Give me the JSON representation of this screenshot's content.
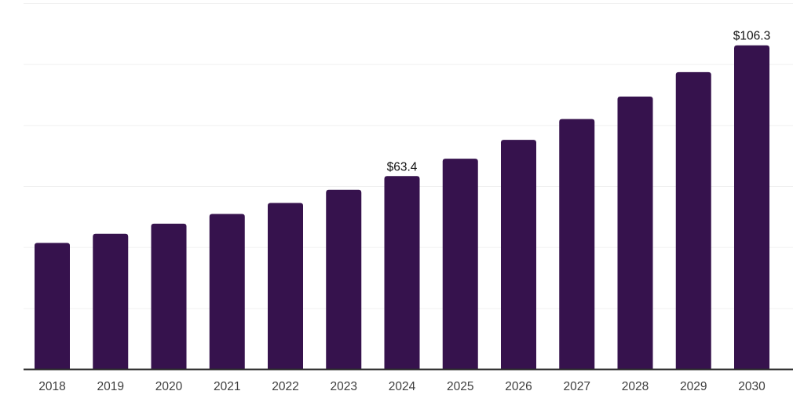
{
  "chart_data": {
    "type": "bar",
    "title": "",
    "xlabel": "",
    "ylabel": "",
    "categories": [
      "2018",
      "2019",
      "2020",
      "2021",
      "2022",
      "2023",
      "2024",
      "2025",
      "2026",
      "2027",
      "2028",
      "2029",
      "2030"
    ],
    "values": [
      41.5,
      44.5,
      47.8,
      51.0,
      54.6,
      58.9,
      63.4,
      69.1,
      75.3,
      82.1,
      89.5,
      97.5,
      106.3
    ],
    "data_labels": [
      "",
      "",
      "",
      "",
      "",
      "",
      "$63.4",
      "",
      "",
      "",
      "",
      "",
      "$106.3"
    ],
    "value_prefix": "$",
    "ylim": [
      0,
      120
    ],
    "gridline_values": [
      20,
      40,
      60,
      80,
      100,
      120
    ],
    "grid": true,
    "legend": false,
    "colors": {
      "bar": "#36124d",
      "gridline": "#f0f0f0",
      "axis": "#2b2b2b",
      "data_label_text": "#111111",
      "tick_text": "#3d3d3d",
      "background": "#ffffff"
    }
  }
}
